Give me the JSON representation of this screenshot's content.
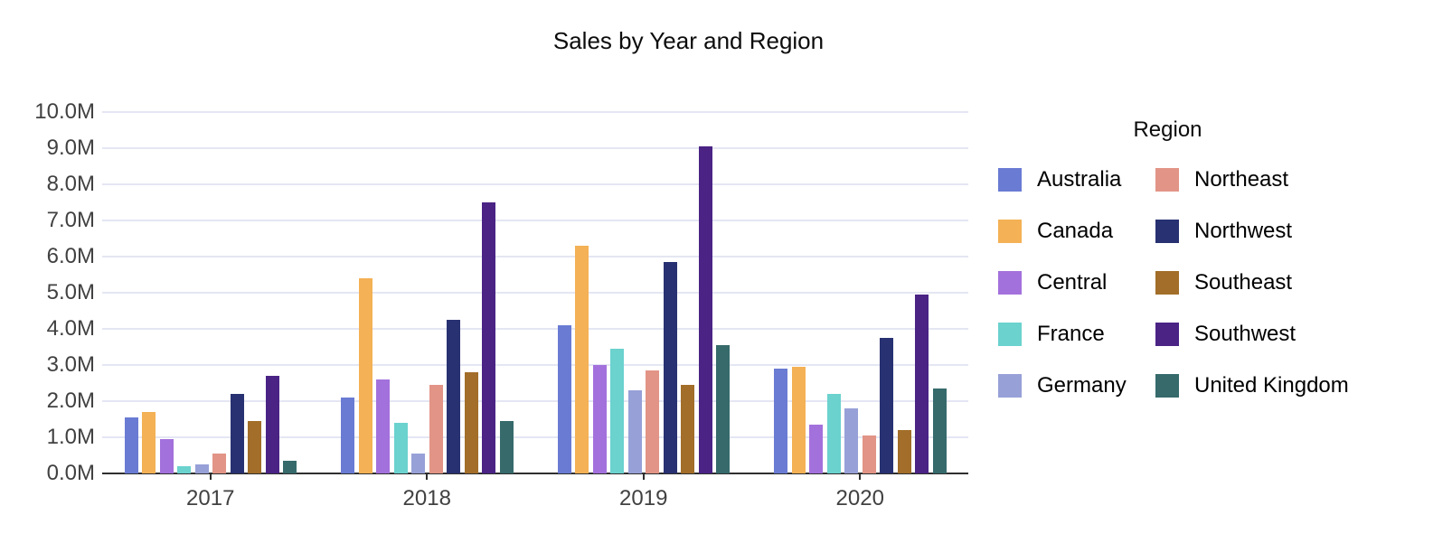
{
  "chart_data": {
    "type": "bar",
    "title": "Sales by Year and Region",
    "legend_title": "Region",
    "legend_position": "right",
    "xlabel": "",
    "ylabel": "",
    "y_unit": "M (millions)",
    "ylim_millions": [
      0,
      10
    ],
    "ytick_step_millions": 1.0,
    "ytick_labels": [
      "0.0M",
      "1.0M",
      "2.0M",
      "3.0M",
      "4.0M",
      "5.0M",
      "6.0M",
      "7.0M",
      "8.0M",
      "9.0M",
      "10.0M"
    ],
    "grid": true,
    "categories": [
      "2017",
      "2018",
      "2019",
      "2020"
    ],
    "series": [
      {
        "name": "Australia",
        "color": "#6a7bd3",
        "values_millions": [
          1.55,
          2.1,
          4.1,
          2.9
        ]
      },
      {
        "name": "Canada",
        "color": "#f4b155",
        "values_millions": [
          1.7,
          5.4,
          6.3,
          2.95
        ]
      },
      {
        "name": "Central",
        "color": "#a371dc",
        "values_millions": [
          0.95,
          2.6,
          3.0,
          1.35
        ]
      },
      {
        "name": "France",
        "color": "#6bd2ce",
        "values_millions": [
          0.2,
          1.4,
          3.45,
          2.2
        ]
      },
      {
        "name": "Germany",
        "color": "#97a0d7",
        "values_millions": [
          0.25,
          0.55,
          2.3,
          1.8
        ]
      },
      {
        "name": "Northeast",
        "color": "#e29486",
        "values_millions": [
          0.55,
          2.45,
          2.85,
          1.05
        ]
      },
      {
        "name": "Northwest",
        "color": "#283171",
        "values_millions": [
          2.2,
          4.25,
          5.85,
          3.75
        ]
      },
      {
        "name": "Southeast",
        "color": "#a26e29",
        "values_millions": [
          1.45,
          2.8,
          2.45,
          1.2
        ]
      },
      {
        "name": "Southwest",
        "color": "#4a2385",
        "values_millions": [
          2.7,
          7.5,
          9.05,
          4.95
        ]
      },
      {
        "name": "United Kingdom",
        "color": "#366a6b",
        "values_millions": [
          0.35,
          1.45,
          3.55,
          2.35
        ]
      }
    ],
    "colors": {
      "background": "#ffffff",
      "gridline": "#e4e6f3",
      "axis_line": "#2f2f2f",
      "axis_label": "#414141",
      "title_text": "#0c0c0c",
      "legend_text": "#000000"
    }
  }
}
